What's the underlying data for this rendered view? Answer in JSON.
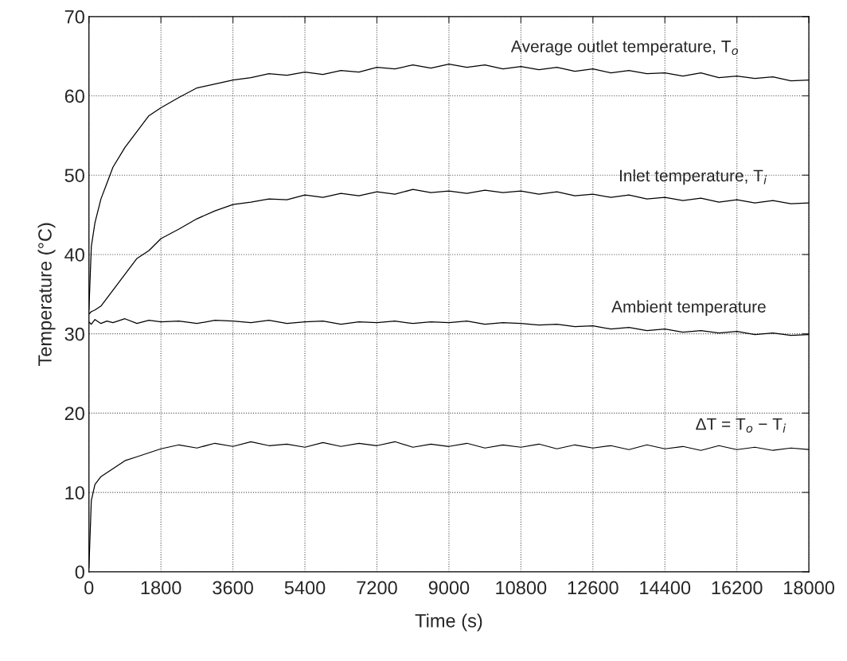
{
  "chart_data": {
    "type": "line",
    "xlabel": "Time (s)",
    "ylabel": "Temperature (°C)",
    "x": [
      0,
      60,
      150,
      300,
      450,
      600,
      900,
      1200,
      1500,
      1800,
      2250,
      2700,
      3150,
      3600,
      4050,
      4500,
      4950,
      5400,
      5850,
      6300,
      6750,
      7200,
      7650,
      8100,
      8550,
      9000,
      9450,
      9900,
      10350,
      10800,
      11250,
      11700,
      12150,
      12600,
      13050,
      13500,
      13950,
      14400,
      14850,
      15300,
      15750,
      16200,
      16650,
      17100,
      17550,
      18000
    ],
    "series": [
      {
        "color": "#000000",
        "values": [
          33,
          41,
          44,
          47,
          49,
          51,
          53.5,
          55.5,
          57.5,
          58.5,
          59.8,
          61,
          61.5,
          62,
          62.3,
          62.8,
          62.6,
          63,
          62.7,
          63.2,
          63,
          63.6,
          63.4,
          63.9,
          63.5,
          64,
          63.6,
          63.9,
          63.4,
          63.7,
          63.3,
          63.6,
          63.1,
          63.4,
          62.9,
          63.2,
          62.8,
          62.9,
          62.5,
          62.9,
          62.3,
          62.5,
          62.2,
          62.4,
          61.9,
          62
        ]
      },
      {
        "color": "#000000",
        "values": [
          32.5,
          32.8,
          33,
          33.5,
          34.5,
          35.5,
          37.5,
          39.5,
          40.5,
          42,
          43.2,
          44.5,
          45.5,
          46.3,
          46.6,
          47,
          46.9,
          47.5,
          47.2,
          47.7,
          47.4,
          47.9,
          47.6,
          48.2,
          47.8,
          48,
          47.7,
          48.1,
          47.8,
          48,
          47.6,
          47.9,
          47.4,
          47.6,
          47.2,
          47.5,
          47,
          47.2,
          46.8,
          47.1,
          46.6,
          46.9,
          46.5,
          46.8,
          46.4,
          46.5
        ]
      },
      {
        "color": "#000000",
        "values": [
          31.5,
          31.2,
          31.8,
          31.3,
          31.6,
          31.4,
          31.9,
          31.3,
          31.7,
          31.5,
          31.6,
          31.3,
          31.7,
          31.6,
          31.4,
          31.7,
          31.3,
          31.5,
          31.6,
          31.2,
          31.5,
          31.4,
          31.6,
          31.3,
          31.5,
          31.4,
          31.6,
          31.2,
          31.4,
          31.3,
          31.1,
          31.2,
          30.9,
          31,
          30.6,
          30.8,
          30.4,
          30.6,
          30.2,
          30.4,
          30.1,
          30.3,
          29.9,
          30.1,
          29.8,
          29.9
        ]
      },
      {
        "color": "#000000",
        "values": [
          0.5,
          9,
          11,
          12,
          12.5,
          13,
          14,
          14.5,
          15,
          15.5,
          16,
          15.6,
          16.2,
          15.8,
          16.4,
          15.9,
          16.1,
          15.7,
          16.3,
          15.8,
          16.2,
          15.9,
          16.4,
          15.7,
          16.1,
          15.8,
          16.2,
          15.6,
          16,
          15.7,
          16.1,
          15.5,
          16,
          15.6,
          15.9,
          15.4,
          16,
          15.5,
          15.8,
          15.3,
          15.9,
          15.4,
          15.7,
          15.3,
          15.6,
          15.4
        ]
      }
    ],
    "annotations": [
      {
        "text": "Average outlet temperature, T$_{o}$",
        "x": 13400,
        "y": 63.4
      },
      {
        "text": "Inlet temperature, T$_{i}$",
        "x": 15100,
        "y": 47.1
      },
      {
        "text": "Ambient temperature",
        "x": 15000,
        "y": 30.6
      },
      {
        "text": "ΔT = T$_{o}$ − T$_{i}$",
        "x": 16300,
        "y": 15.8
      }
    ],
    "xlim": [
      0,
      18000
    ],
    "xticks": [
      0,
      1800,
      3600,
      5400,
      7200,
      9000,
      10800,
      12600,
      14400,
      16200,
      18000
    ],
    "ylim": [
      0,
      70
    ],
    "yticks": [
      0,
      10,
      20,
      30,
      40,
      50,
      60,
      70
    ],
    "grid": true,
    "line_style": "solid",
    "marker": "none",
    "legend": false
  }
}
